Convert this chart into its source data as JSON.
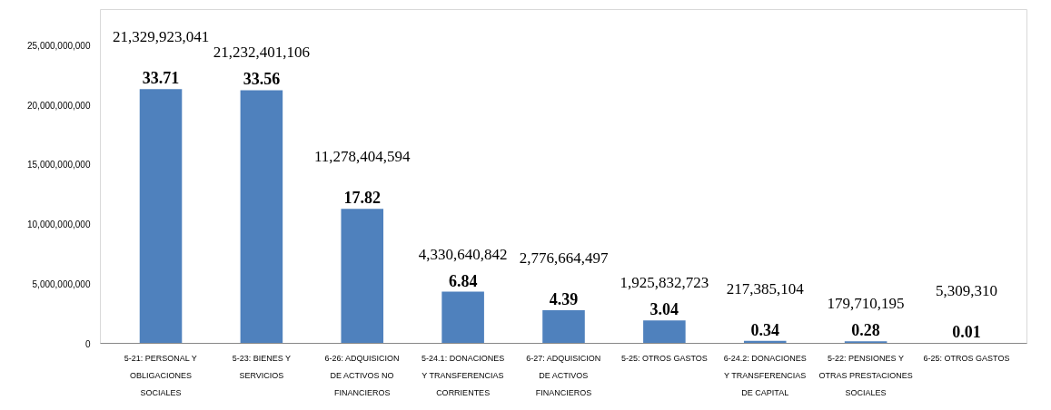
{
  "chart_data": {
    "type": "bar",
    "categories": [
      "5-21: PERSONAL Y OBLIGACIONES SOCIALES",
      "5-23: BIENES Y SERVICIOS",
      "6-26: ADQUISICION DE ACTIVOS NO FINANCIEROS",
      "5-24.1: DONACIONES Y TRANSFERENCIAS CORRIENTES",
      "6-27: ADQUISICION DE ACTIVOS FINANCIEROS",
      "5-25: OTROS GASTOS",
      "6-24.2: DONACIONES Y TRANSFERENCIAS DE CAPITAL",
      "5-22: PENSIONES Y OTRAS PRESTACIONES SOCIALES",
      "6-25: OTROS GASTOS"
    ],
    "values": [
      21329923041,
      21232401106,
      11278404594,
      4330640842,
      2776664497,
      1925832723,
      217385104,
      179710195,
      5309310
    ],
    "value_labels": [
      "21,329,923,041",
      "21,232,401,106",
      "11,278,404,594",
      "4,330,640,842",
      "2,776,664,497",
      "1,925,832,723",
      "217,385,104",
      "179,710,195",
      "5,309,310"
    ],
    "color": "#4f81bd",
    "ylim": [
      0,
      28000000000
    ],
    "yticks": [
      {
        "value": 0,
        "label": "0"
      },
      {
        "value": 5000000000,
        "label": "5,000,000,000"
      },
      {
        "value": 10000000000,
        "label": "10,000,000,000"
      },
      {
        "value": 15000000000,
        "label": "15,000,000,000"
      },
      {
        "value": 20000000000,
        "label": "20,000,000,000"
      },
      {
        "value": 25000000000,
        "label": "25,000,000,000"
      }
    ],
    "annotations": [
      {
        "text": "33.71",
        "x": "5-21: PERSONAL Y OBLIGACIONES SOCIALES",
        "y": 21329923041
      },
      {
        "text": "33.56",
        "x": "5-23: BIENES Y SERVICIOS",
        "y": 21232401106
      },
      {
        "text": "17.82",
        "x": "6-26: ADQUISICION DE ACTIVOS NO FINANCIEROS",
        "y": 11278404594
      },
      {
        "text": "6.84",
        "x": "5-24.1: DONACIONES Y TRANSFERENCIAS CORRIENTES",
        "y": 4330640842
      },
      {
        "text": "4.39",
        "x": "6-27: ADQUISICION DE ACTIVOS FINANCIEROS",
        "y": 2776664497
      },
      {
        "text": "3.04",
        "x": "5-25: OTROS GASTOS",
        "y": 1925832723
      },
      {
        "text": "0.34",
        "x": "6-24.2: DONACIONES Y TRANSFERENCIAS DE CAPITAL",
        "y": 217385104
      },
      {
        "text": "0.28",
        "x": "5-22: PENSIONES Y OTRAS PRESTACIONES SOCIALES",
        "y": 179710195
      },
      {
        "text": "0.01",
        "x": "6-25: OTROS GASTOS",
        "y": 5309310
      }
    ]
  }
}
